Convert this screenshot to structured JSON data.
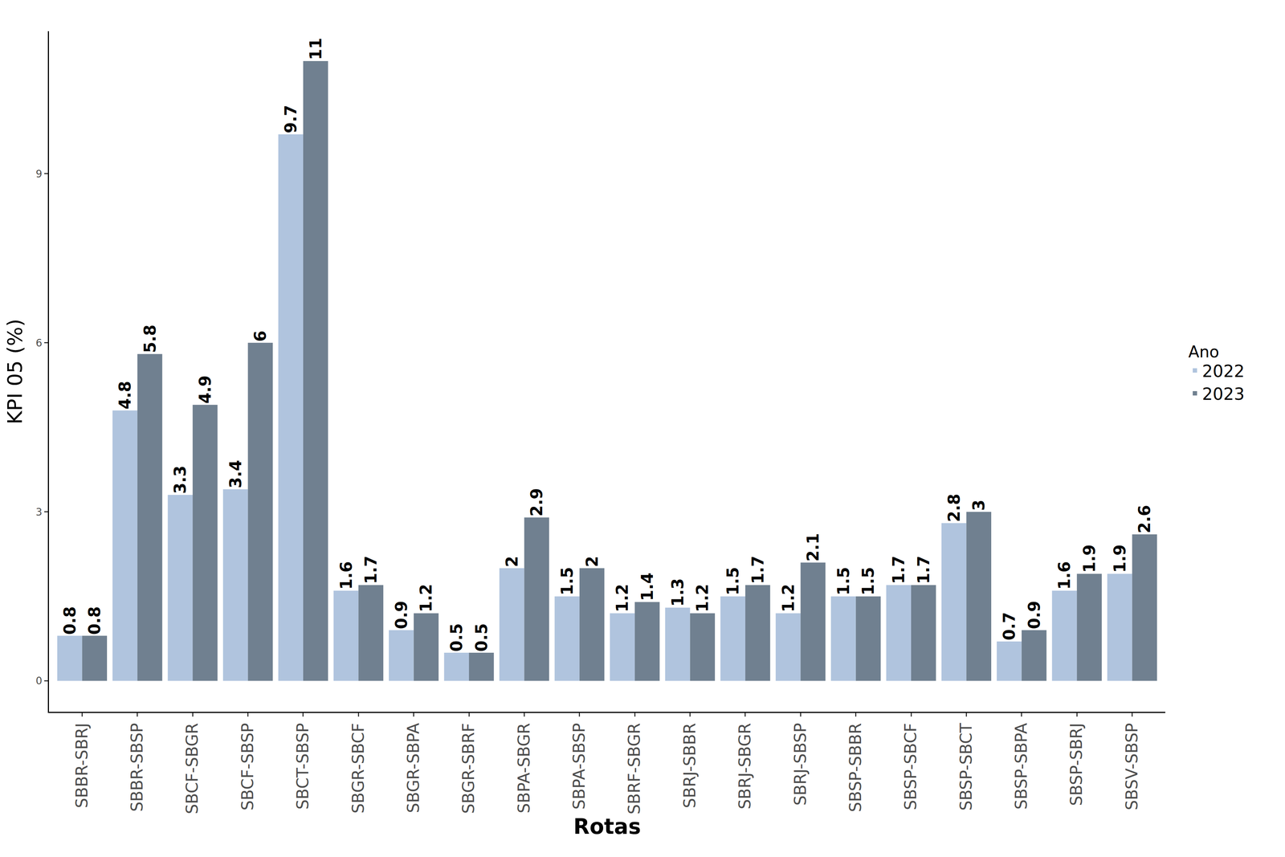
{
  "chart_data": {
    "type": "bar",
    "x_label": "Rotas",
    "y_label": "KPI 05 (%)",
    "legend_title": "Ano",
    "categories": [
      "SBBR-SBRJ",
      "SBBR-SBSP",
      "SBCF-SBGR",
      "SBCF-SBSP",
      "SBCT-SBSP",
      "SBGR-SBCF",
      "SBGR-SBPA",
      "SBGR-SBRF",
      "SBPA-SBGR",
      "SBPA-SBSP",
      "SBRF-SBGR",
      "SBRJ-SBBR",
      "SBRJ-SBGR",
      "SBRJ-SBSP",
      "SBSP-SBBR",
      "SBSP-SBCF",
      "SBSP-SBCT",
      "SBSP-SBPA",
      "SBSP-SBRJ",
      "SBSV-SBSP"
    ],
    "series": [
      {
        "name": "2022",
        "color": "#b0c4de",
        "values": [
          0.8,
          4.8,
          3.3,
          3.4,
          9.7,
          1.6,
          0.9,
          0.5,
          2,
          1.5,
          1.2,
          1.3,
          1.5,
          1.2,
          1.5,
          1.7,
          2.8,
          0.7,
          1.6,
          1.9
        ]
      },
      {
        "name": "2023",
        "color": "#708090",
        "values": [
          0.8,
          5.8,
          4.9,
          6,
          11,
          1.7,
          1.2,
          0.5,
          2.9,
          2,
          1.4,
          1.2,
          1.7,
          2.1,
          1.5,
          1.7,
          3,
          0.9,
          1.9,
          2.6
        ]
      }
    ],
    "ylim": [
      -0.55,
      11.53
    ],
    "yticks": [
      0,
      3,
      6,
      9
    ],
    "grid": false,
    "legend": "right",
    "data_labels": true
  }
}
